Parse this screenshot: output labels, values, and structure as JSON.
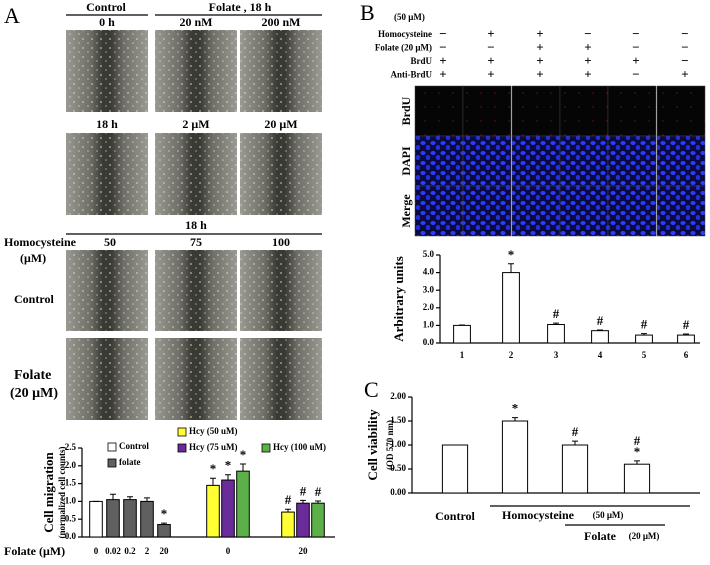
{
  "panel_a": {
    "label": "A",
    "header_control": "Control",
    "header_folate": "Folate , 18 h",
    "row1": [
      "0 h",
      "20 nM",
      "200 nM"
    ],
    "row2": [
      "18 h",
      "2 μM",
      "20 μM"
    ],
    "hcy_header": "18 h",
    "hcy_label": "Homocysteine",
    "hcy_unit": "(μM)",
    "hcy_columns": [
      "50",
      "75",
      "100"
    ],
    "row_control": "Control",
    "row_folate": "Folate",
    "row_folate_unit": "(20 μM)"
  },
  "panel_b": {
    "label": "B",
    "hcy_unit": "(50 μM)",
    "conditions": [
      {
        "name": "Homocysteine",
        "signs": [
          "−",
          "+",
          "+",
          "−",
          "−",
          "−"
        ]
      },
      {
        "name": "Folate (20 μM)",
        "signs": [
          "−",
          "−",
          "+",
          "+",
          "−",
          "−"
        ]
      },
      {
        "name": "BrdU",
        "signs": [
          "+",
          "+",
          "+",
          "+",
          "+",
          "−"
        ]
      },
      {
        "name": "Anti-BrdU",
        "signs": [
          "+",
          "+",
          "+",
          "+",
          "−",
          "+"
        ]
      }
    ],
    "image_rows": [
      "BrdU",
      "DAPI",
      "Merge"
    ]
  },
  "panel_c": {
    "label": "C"
  },
  "chart_data": [
    {
      "type": "bar",
      "y_label": "Cell migration",
      "y_sublabel": "(normalized cell counts)",
      "x_label": "Folate (μM)",
      "categories": [
        "0",
        "0.02",
        "0.2",
        "2",
        "20",
        "0",
        "20"
      ],
      "ylim": [
        0,
        2.5
      ],
      "yticks": [
        {
          "value": 0,
          "label": "0.0"
        },
        0.5,
        {
          "value": 1,
          "label": "1.0"
        },
        1.5,
        {
          "value": 2,
          "label": "2.0"
        },
        2.5
      ],
      "series": [
        {
          "name": "Control",
          "color": "#ffffff",
          "values": [
            1.0,
            null,
            null,
            null,
            null,
            null,
            null
          ],
          "errors": [
            0,
            null,
            null,
            null,
            null,
            null,
            null
          ]
        },
        {
          "name": "folate",
          "color": "#606060",
          "values": [
            null,
            1.05,
            1.05,
            1.0,
            0.35,
            null,
            null
          ],
          "errors": [
            null,
            0.15,
            0.08,
            0.1,
            0.04,
            null,
            null
          ],
          "annotations": [
            null,
            null,
            null,
            null,
            "*",
            null,
            null
          ]
        },
        {
          "name": "Hcy (50 uM)",
          "color": "#ffff33",
          "values": [
            null,
            null,
            null,
            null,
            null,
            1.45,
            0.7
          ],
          "errors": [
            null,
            null,
            null,
            null,
            null,
            0.2,
            0.08
          ],
          "annotations": [
            null,
            null,
            null,
            null,
            null,
            "*",
            "#"
          ]
        },
        {
          "name": "Hcy (75 uM)",
          "color": "#6a2c9a",
          "values": [
            null,
            null,
            null,
            null,
            null,
            1.6,
            0.95
          ],
          "errors": [
            null,
            null,
            null,
            null,
            null,
            0.15,
            0.08
          ],
          "annotations": [
            null,
            null,
            null,
            null,
            null,
            "*",
            "#"
          ]
        },
        {
          "name": "Hcy (100 uM)",
          "color": "#5cb04a",
          "values": [
            null,
            null,
            null,
            null,
            null,
            1.85,
            0.95
          ],
          "errors": [
            null,
            null,
            null,
            null,
            null,
            0.2,
            0.06
          ],
          "annotations": [
            null,
            null,
            null,
            null,
            null,
            "*",
            "#"
          ]
        }
      ]
    },
    {
      "type": "bar",
      "y_label": "Arbitrary units",
      "categories": [
        "1",
        "2",
        "3",
        "4",
        "5",
        "6"
      ],
      "values": [
        1.0,
        4.0,
        1.05,
        0.7,
        0.45,
        0.45
      ],
      "errors": [
        0.02,
        0.5,
        0.08,
        0.04,
        0.08,
        0.06
      ],
      "annotations": [
        null,
        "*",
        "#",
        "#",
        "#",
        "#"
      ],
      "color": "#ffffff",
      "ylim": [
        0,
        5
      ],
      "yticks": [
        {
          "value": 0,
          "label": "0.0"
        },
        {
          "value": 1,
          "label": "1.0"
        },
        {
          "value": 2,
          "label": "2.0"
        },
        {
          "value": 3,
          "label": "3.0"
        },
        {
          "value": 4,
          "label": "4.0"
        },
        {
          "value": 5,
          "label": "5.0"
        }
      ]
    },
    {
      "type": "bar",
      "y_label": "Cell viability",
      "y_sublabel": "(OD 570 nm)",
      "categories": [
        "Control",
        null,
        null,
        null
      ],
      "x_groups": [
        {
          "label": "Homocysteine",
          "unit": "(50 μM)"
        },
        {
          "label": "Folate",
          "unit": "(20 μM)"
        }
      ],
      "values": [
        1.0,
        1.5,
        1.0,
        0.6
      ],
      "errors": [
        0,
        0.07,
        0.08,
        0.07
      ],
      "annotations": [
        null,
        [
          "*"
        ],
        [
          "#"
        ],
        [
          "#",
          "*"
        ]
      ],
      "color": "#ffffff",
      "ylim": [
        0,
        2
      ],
      "yticks": [
        {
          "value": 0,
          "label": "0.00"
        },
        {
          "value": 0.5,
          "label": "0.50"
        },
        {
          "value": 1,
          "label": "1.00"
        },
        {
          "value": 1.5,
          "label": "1.50"
        },
        {
          "value": 2,
          "label": "2.00"
        }
      ]
    }
  ]
}
